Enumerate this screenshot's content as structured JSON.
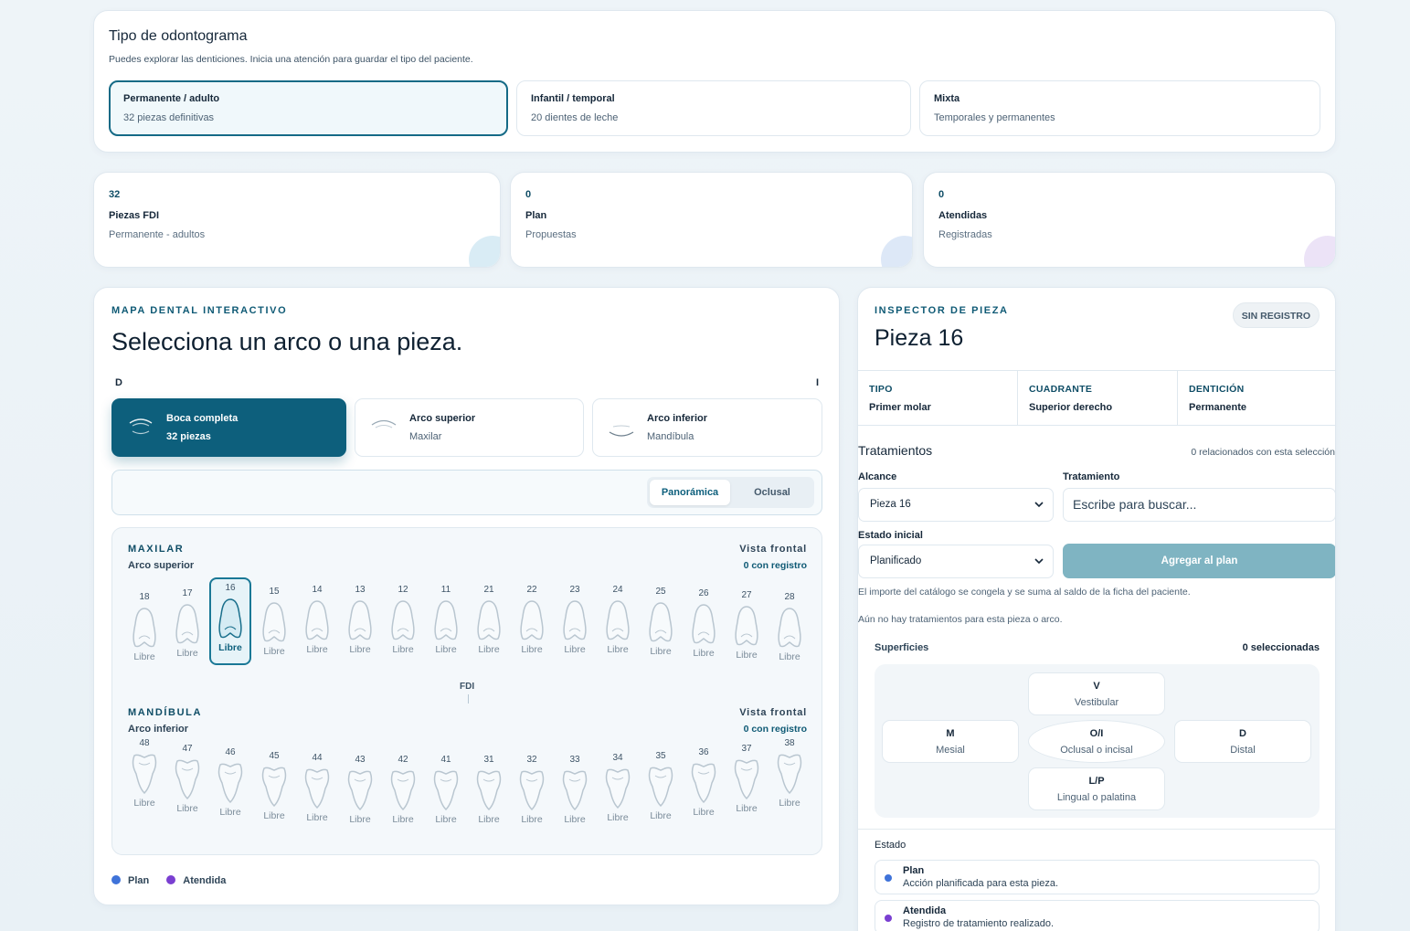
{
  "type_selector": {
    "title": "Tipo de odontograma",
    "subtitle": "Puedes explorar las denticiones. Inicia una atención para guardar el tipo del paciente.",
    "options": [
      {
        "title": "Permanente / adulto",
        "subtitle": "32 piezas definitivas",
        "selected": true
      },
      {
        "title": "Infantil / temporal",
        "subtitle": "20 dientes de leche",
        "selected": false
      },
      {
        "title": "Mixta",
        "subtitle": "Temporales y permanentes",
        "selected": false
      }
    ]
  },
  "stats": [
    {
      "value": "32",
      "label": "Piezas FDI",
      "sub": "Permanente - adultos",
      "accent": "#d9ecf5"
    },
    {
      "value": "0",
      "label": "Plan",
      "sub": "Propuestas",
      "accent": "#dde8f7"
    },
    {
      "value": "0",
      "label": "Atendidas",
      "sub": "Registradas",
      "accent": "#ece3f7"
    }
  ],
  "map": {
    "kicker": "MAPA DENTAL INTERACTIVO",
    "title": "Selecciona un arco o una pieza.",
    "side_left": "D",
    "side_right": "I",
    "arch_buttons": [
      {
        "title": "Boca completa",
        "subtitle": "32 piezas",
        "icon": "full-mouth-icon",
        "selected": true
      },
      {
        "title": "Arco superior",
        "subtitle": "Maxilar",
        "icon": "upper-arch-icon",
        "selected": false
      },
      {
        "title": "Arco inferior",
        "subtitle": "Mandíbula",
        "icon": "lower-arch-icon",
        "selected": false
      }
    ],
    "views": [
      "Panorámica",
      "Oclusal"
    ],
    "active_view": "Panorámica",
    "upper": {
      "title": "MAXILAR",
      "subtitle": "Arco superior",
      "view": "Vista frontal",
      "records": "0 con registro",
      "teeth": [
        {
          "n": "18",
          "status": "Libre"
        },
        {
          "n": "17",
          "status": "Libre"
        },
        {
          "n": "16",
          "status": "Libre",
          "selected": true
        },
        {
          "n": "15",
          "status": "Libre"
        },
        {
          "n": "14",
          "status": "Libre"
        },
        {
          "n": "13",
          "status": "Libre"
        },
        {
          "n": "12",
          "status": "Libre"
        },
        {
          "n": "11",
          "status": "Libre"
        },
        {
          "n": "21",
          "status": "Libre"
        },
        {
          "n": "22",
          "status": "Libre"
        },
        {
          "n": "23",
          "status": "Libre"
        },
        {
          "n": "24",
          "status": "Libre"
        },
        {
          "n": "25",
          "status": "Libre"
        },
        {
          "n": "26",
          "status": "Libre"
        },
        {
          "n": "27",
          "status": "Libre"
        },
        {
          "n": "28",
          "status": "Libre"
        }
      ]
    },
    "fdi_label": "FDI",
    "lower": {
      "title": "MANDÍBULA",
      "subtitle": "Arco inferior",
      "view": "Vista frontal",
      "records": "0 con registro",
      "teeth": [
        {
          "n": "48",
          "status": "Libre"
        },
        {
          "n": "47",
          "status": "Libre"
        },
        {
          "n": "46",
          "status": "Libre"
        },
        {
          "n": "45",
          "status": "Libre"
        },
        {
          "n": "44",
          "status": "Libre"
        },
        {
          "n": "43",
          "status": "Libre"
        },
        {
          "n": "42",
          "status": "Libre"
        },
        {
          "n": "41",
          "status": "Libre"
        },
        {
          "n": "31",
          "status": "Libre"
        },
        {
          "n": "32",
          "status": "Libre"
        },
        {
          "n": "33",
          "status": "Libre"
        },
        {
          "n": "34",
          "status": "Libre"
        },
        {
          "n": "35",
          "status": "Libre"
        },
        {
          "n": "36",
          "status": "Libre"
        },
        {
          "n": "37",
          "status": "Libre"
        },
        {
          "n": "38",
          "status": "Libre"
        }
      ]
    },
    "legend": [
      {
        "label": "Plan",
        "color": "#3f73d9"
      },
      {
        "label": "Atendida",
        "color": "#7a3fd1"
      }
    ]
  },
  "inspector": {
    "kicker": "INSPECTOR DE PIEZA",
    "title": "Pieza 16",
    "badge": "SIN REGISTRO",
    "info": [
      {
        "key": "TIPO",
        "value": "Primer molar"
      },
      {
        "key": "CUADRANTE",
        "value": "Superior derecho"
      },
      {
        "key": "DENTICIÓN",
        "value": "Permanente"
      }
    ],
    "treatments_title": "Tratamientos",
    "treatments_count": "0 relacionados con esta selección",
    "scope_label": "Alcance",
    "scope_value": "Pieza 16",
    "treatment_label": "Tratamiento",
    "treatment_placeholder": "Escribe para buscar...",
    "initial_state_label": "Estado inicial",
    "initial_state_value": "Planificado",
    "add_button": "Agregar al plan",
    "note1": "El importe del catálogo se congela y se suma al saldo de la ficha del paciente.",
    "note2": "Aún no hay tratamientos para esta pieza o arco.",
    "surfaces_title": "Superficies",
    "surfaces_count": "0 seleccionadas",
    "surfaces": {
      "v": {
        "code": "V",
        "label": "Vestibular"
      },
      "m": {
        "code": "M",
        "label": "Mesial"
      },
      "o": {
        "code": "O/I",
        "label": "Oclusal o incisal"
      },
      "d": {
        "code": "D",
        "label": "Distal"
      },
      "l": {
        "code": "L/P",
        "label": "Lingual o palatina"
      }
    },
    "estado_title": "Estado",
    "estados": [
      {
        "title": "Plan",
        "subtitle": "Acción planificada para esta pieza.",
        "color": "#3f73d9"
      },
      {
        "title": "Atendida",
        "subtitle": "Registro de tratamiento realizado.",
        "color": "#7a3fd1"
      }
    ]
  }
}
